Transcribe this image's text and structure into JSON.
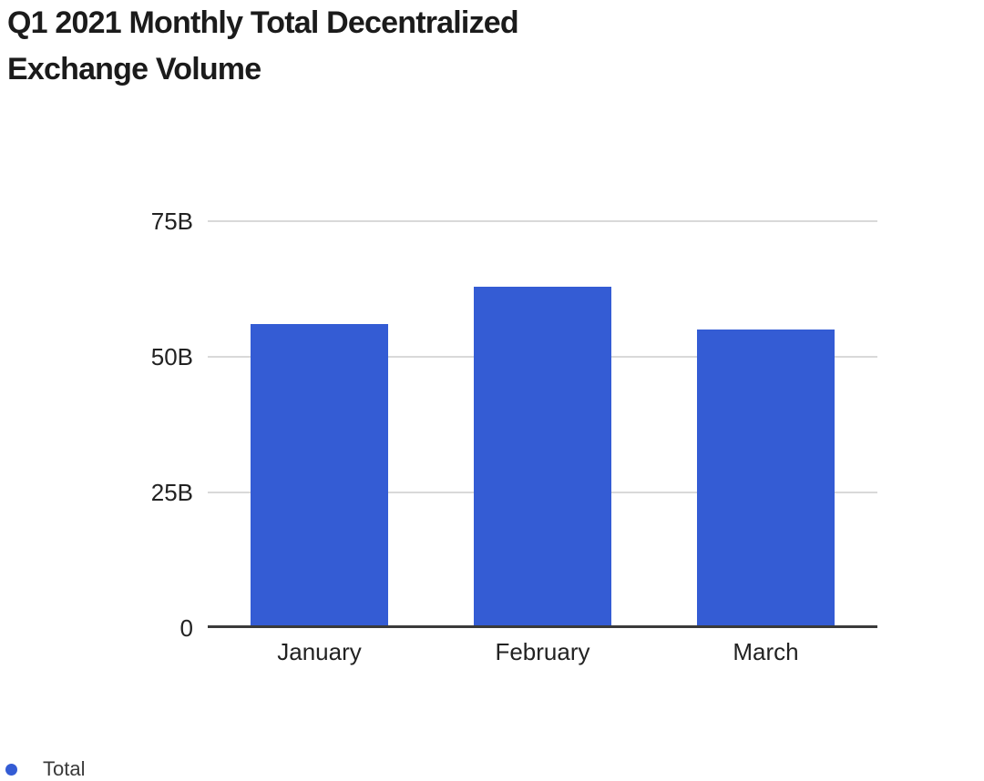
{
  "chart_data": {
    "type": "bar",
    "title": "Q1 2021 Monthly Total Decentralized Exchange Volume",
    "categories": [
      "January",
      "February",
      "March"
    ],
    "series": [
      {
        "name": "Total",
        "values": [
          56,
          63,
          55
        ]
      }
    ],
    "xlabel": "",
    "ylabel": "",
    "ylim": [
      0,
      75
    ],
    "yticks": [
      {
        "value": 75,
        "label": "75B"
      },
      {
        "value": 50,
        "label": "50B"
      },
      {
        "value": 25,
        "label": "25B"
      },
      {
        "value": 0,
        "label": "0"
      }
    ],
    "grid": "horizontal",
    "legend": {
      "position": "bottom-left",
      "items": [
        {
          "label": "Total",
          "marker": "circle",
          "color": "#345CD4"
        }
      ]
    },
    "colors": {
      "bar": "#345CD4",
      "gridline": "#D9D9D9",
      "axis_line": "#3A3A3A",
      "title_text": "#1B1B1B",
      "tick_text": "#222222",
      "legend_text": "#3A3A3A",
      "background": "#FFFFFF"
    }
  }
}
